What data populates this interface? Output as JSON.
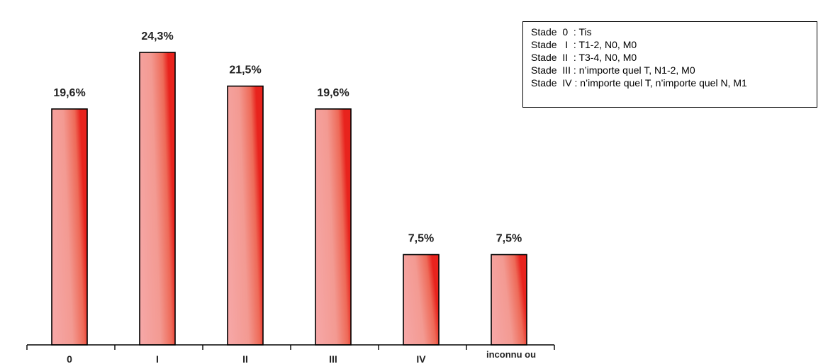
{
  "chart_data": {
    "type": "bar",
    "categories": [
      "0",
      "I",
      "II",
      "III",
      "IV",
      "inconnu ou"
    ],
    "values": [
      19.6,
      24.3,
      21.5,
      19.6,
      7.5,
      7.5
    ],
    "value_labels": [
      "19,6%",
      "24,3%",
      "21,5%",
      "19,6%",
      "7,5%",
      "7,5%"
    ],
    "title": "",
    "xlabel": "",
    "ylabel": "",
    "ylim": [
      0,
      24.3
    ],
    "grid": false,
    "bar_color_light": "#f6a8a8",
    "bar_color_dark": "#e8231d"
  },
  "legend": {
    "lines": [
      "Stade  0  : Tis",
      "Stade   I  : T1-2, N0, M0",
      "Stade  II  : T3-4, N0, M0",
      "Stade  III : n’importe quel T, N1-2, M0",
      "Stade  IV : n’importe quel T, n’importe quel N, M1"
    ]
  }
}
